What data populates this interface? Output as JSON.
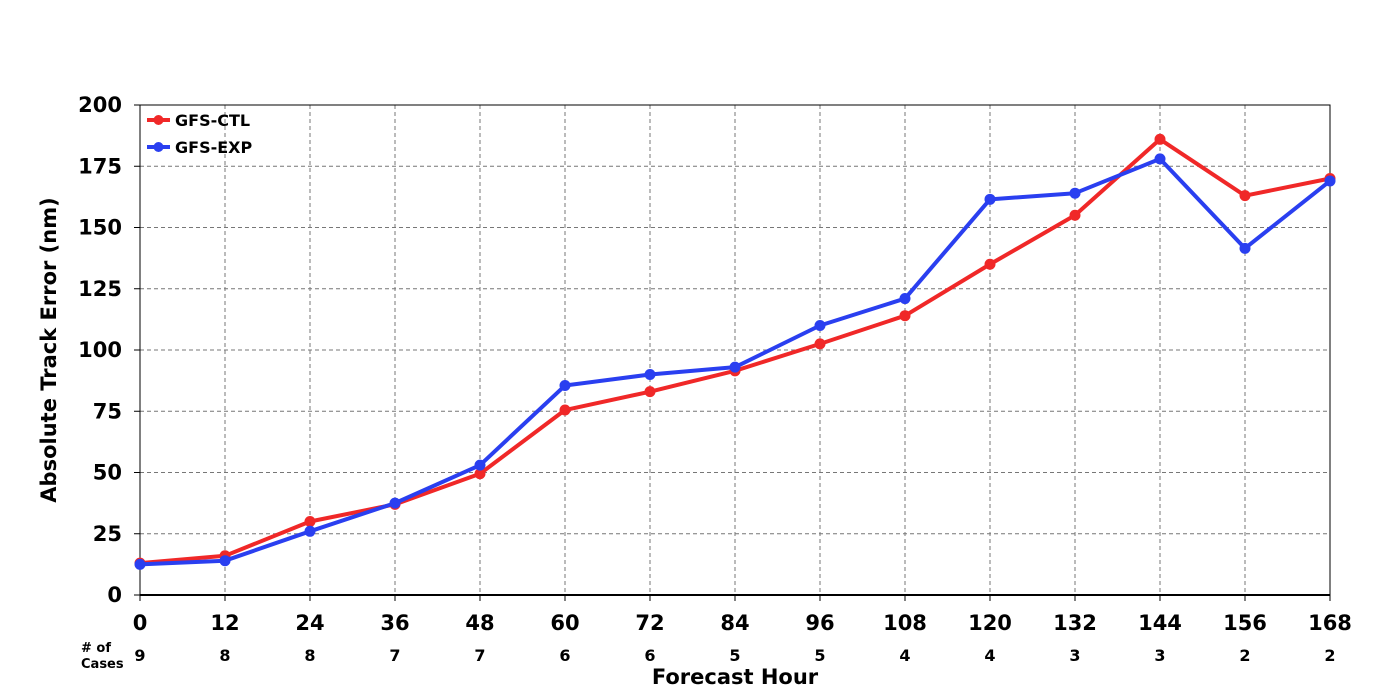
{
  "chart_data": {
    "type": "line",
    "title": "",
    "xlabel": "Forecast Hour",
    "ylabel": "Absolute Track Error (nm)",
    "x": [
      0,
      12,
      24,
      36,
      48,
      60,
      72,
      84,
      96,
      108,
      120,
      132,
      144,
      156,
      168
    ],
    "xlim": [
      0,
      168
    ],
    "ylim": [
      0,
      200
    ],
    "yticks": [
      0,
      25,
      50,
      75,
      100,
      125,
      150,
      175,
      200
    ],
    "grid": true,
    "legend_position": "top-left",
    "cases_label": "# of Cases",
    "cases_label_lines": [
      "# of",
      "Cases"
    ],
    "cases": [
      9,
      8,
      8,
      7,
      7,
      6,
      6,
      5,
      5,
      4,
      4,
      3,
      3,
      2,
      2
    ],
    "series": [
      {
        "name": "GFS-CTL",
        "color": "#f02828",
        "values": [
          13,
          16,
          30,
          37,
          49.5,
          75.5,
          83,
          91.5,
          102.5,
          114,
          135,
          155,
          186,
          163,
          170
        ]
      },
      {
        "name": "GFS-EXP",
        "color": "#2a3ff0",
        "values": [
          12.5,
          14,
          26,
          37.5,
          53,
          85.5,
          90,
          93,
          110,
          121,
          161.5,
          164,
          178,
          141.5,
          169
        ]
      }
    ]
  }
}
